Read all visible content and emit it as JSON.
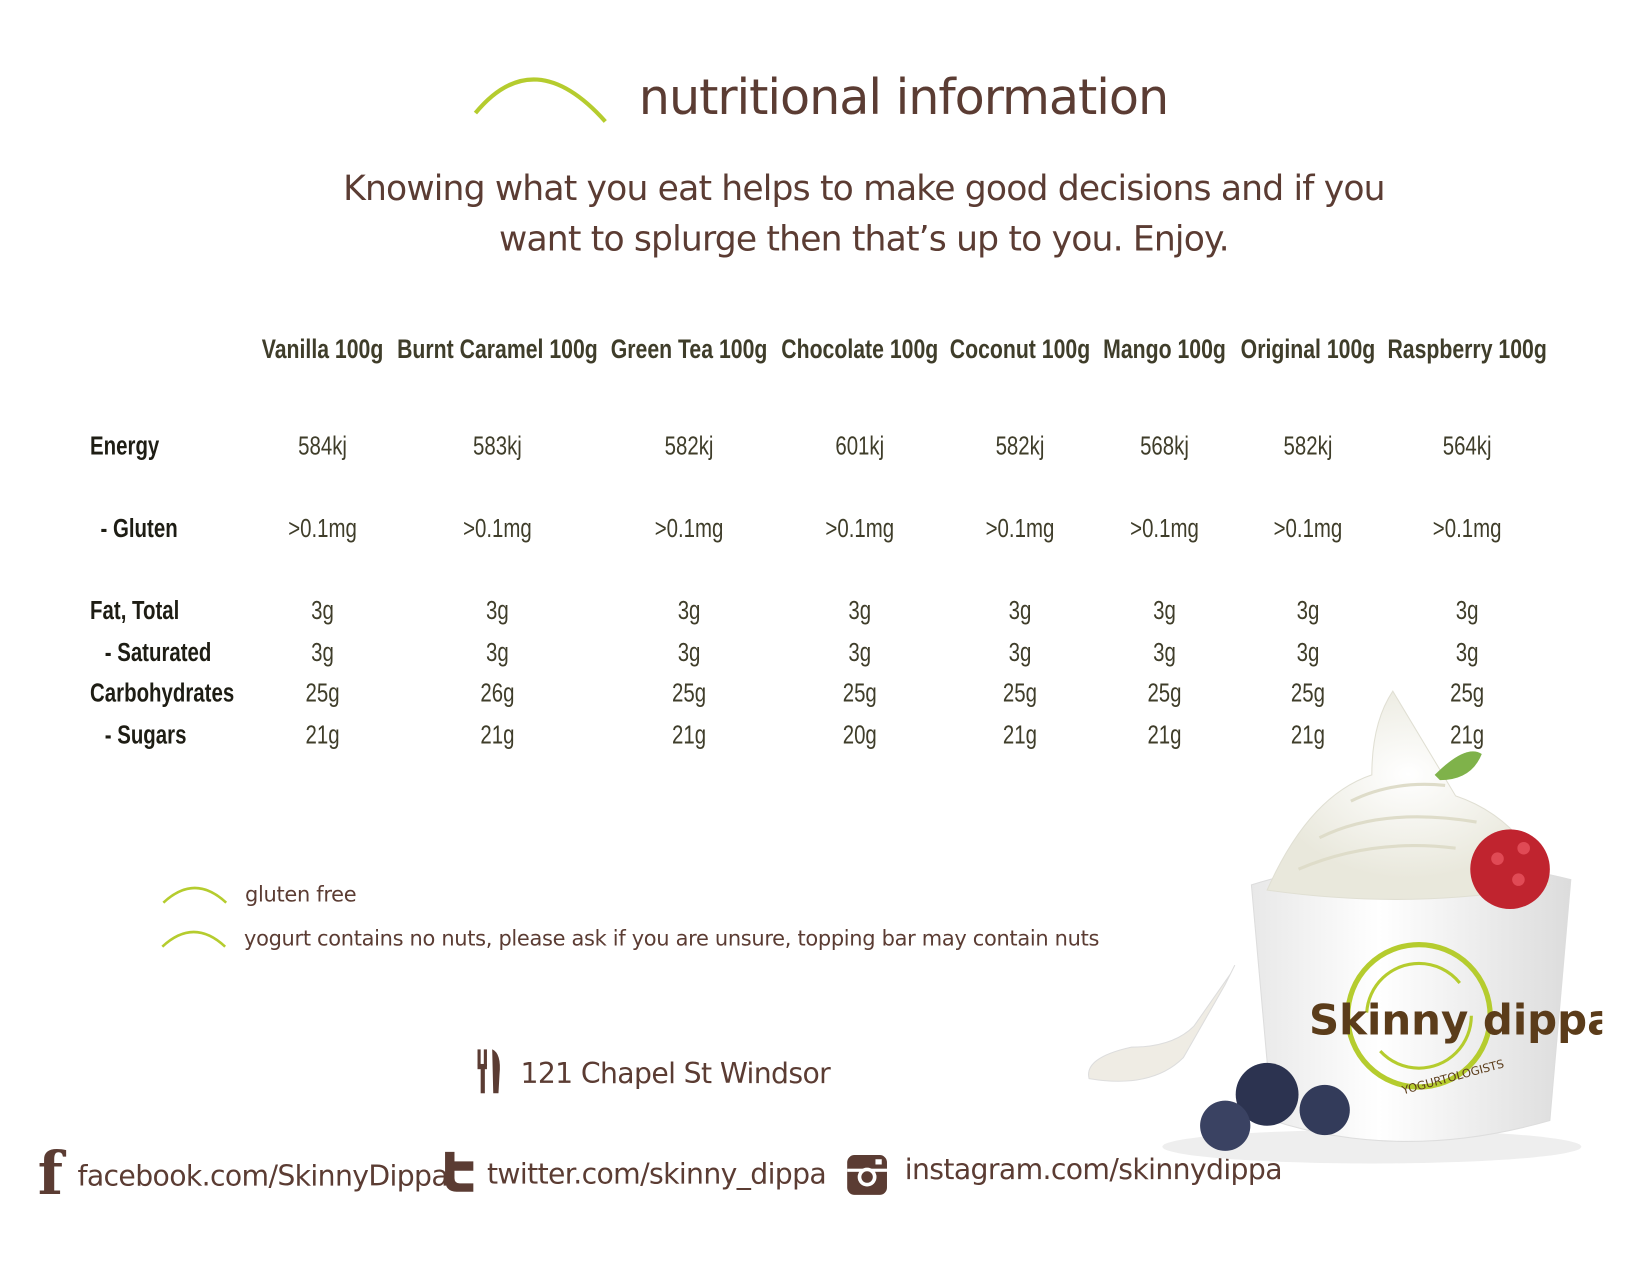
{
  "header": {
    "title": "nutritional information",
    "intro_line1": "Knowing what you eat helps to make good decisions and if you",
    "intro_line2": "want to splurge then that’s up to you.  Enjoy."
  },
  "colors": {
    "accent_green": "#b5cc2e",
    "brown": "#5b3c33",
    "table_text": "#3f3d2a"
  },
  "table": {
    "columns": [
      "Vanilla 100g",
      "Burnt Caramel 100g",
      "Green Tea 100g",
      "Chocolate 100g",
      "Coconut 100g",
      "Mango 100g",
      "Original 100g",
      "Raspberry 100g"
    ],
    "rows": [
      {
        "label": "Energy",
        "values": [
          "584kj",
          "583kj",
          "582kj",
          "601kj",
          "582kj",
          "568kj",
          "582kj",
          "564kj"
        ]
      },
      {
        "label": "- Gluten",
        "values": [
          ">0.1mg",
          ">0.1mg",
          ">0.1mg",
          ">0.1mg",
          ">0.1mg",
          ">0.1mg",
          ">0.1mg",
          ">0.1mg"
        ]
      },
      {
        "label": "Fat, Total",
        "values": [
          "3g",
          "3g",
          "3g",
          "3g",
          "3g",
          "3g",
          "3g",
          "3g"
        ]
      },
      {
        "label": "- Saturated",
        "values": [
          "3g",
          "3g",
          "3g",
          "3g",
          "3g",
          "3g",
          "3g",
          "3g"
        ]
      },
      {
        "label": "Carbohydrates",
        "values": [
          "25g",
          "26g",
          "25g",
          "25g",
          "25g",
          "25g",
          "25g",
          "25g"
        ]
      },
      {
        "label": "- Sugars",
        "values": [
          "21g",
          "21g",
          "21g",
          "20g",
          "21g",
          "21g",
          "21g",
          "21g"
        ]
      }
    ]
  },
  "legend": [
    {
      "icon": "green-arc-icon",
      "text": "gluten free"
    },
    {
      "icon": "green-arc-icon",
      "text": "yogurt contains no nuts, please ask if you are unsure, topping bar may contain nuts"
    }
  ],
  "address": {
    "icon": "fork-knife-icon",
    "text": "121 Chapel St Windsor"
  },
  "social": [
    {
      "icon": "facebook-icon",
      "text": "facebook.com/SkinnyDippa"
    },
    {
      "icon": "twitter-icon",
      "text": "twitter.com/skinny_dippa"
    },
    {
      "icon": "instagram-icon",
      "text": "instagram.com/skinnydippa"
    }
  ],
  "logo": {
    "name": "Skinny dippa",
    "tagline": "YOGURTOLOGISTS"
  }
}
